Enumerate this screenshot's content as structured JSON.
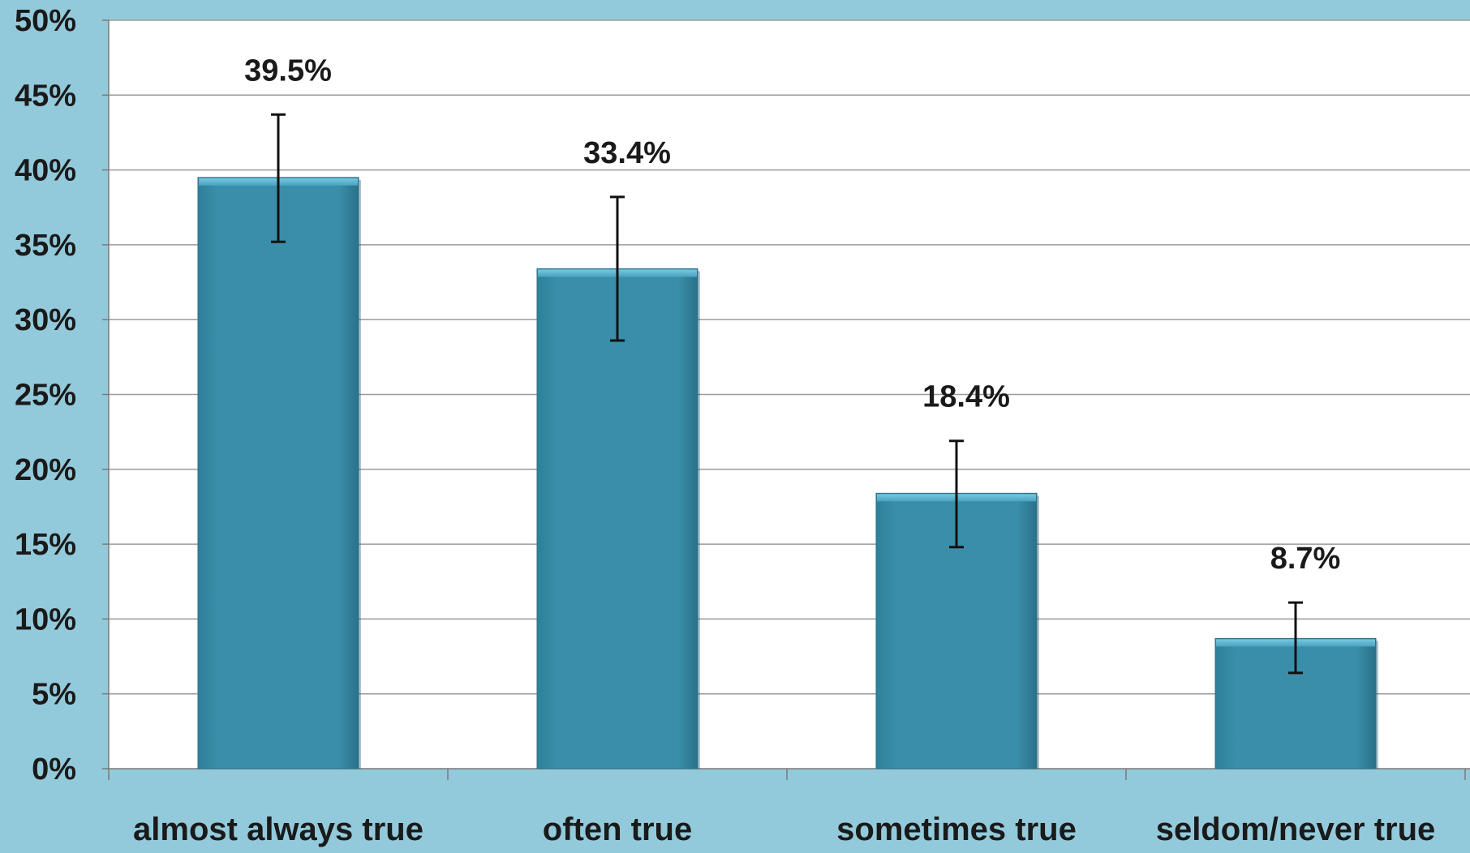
{
  "chart_data": {
    "type": "bar",
    "categories": [
      "almost always true",
      "often true",
      "sometimes true",
      "seldom/never true"
    ],
    "values": [
      39.5,
      33.4,
      18.4,
      8.7
    ],
    "value_labels": [
      "39.5%",
      "33.4%",
      "18.4%",
      "8.7%"
    ],
    "error_low": [
      35.2,
      28.6,
      14.8,
      6.4
    ],
    "error_high": [
      43.7,
      38.2,
      21.9,
      11.1
    ],
    "ylim": [
      0,
      50
    ],
    "yticks": [
      0,
      5,
      10,
      15,
      20,
      25,
      30,
      35,
      40,
      45,
      50
    ],
    "ytick_labels": [
      "0%",
      "5%",
      "10%",
      "15%",
      "20%",
      "25%",
      "30%",
      "35%",
      "40%",
      "45%",
      "50%"
    ],
    "grid": true,
    "legend": "none",
    "title": "",
    "xlabel": "",
    "ylabel": ""
  },
  "colors": {
    "background": "#93cadb",
    "plot_area": "#ffffff",
    "bar_fill": "#3a8ea9",
    "bar_top": "#62b6d0",
    "bar_edge": "#2b7189",
    "gridline": "#9a9a9a",
    "error_bar": "#111111",
    "text": "#1a1a1a"
  }
}
